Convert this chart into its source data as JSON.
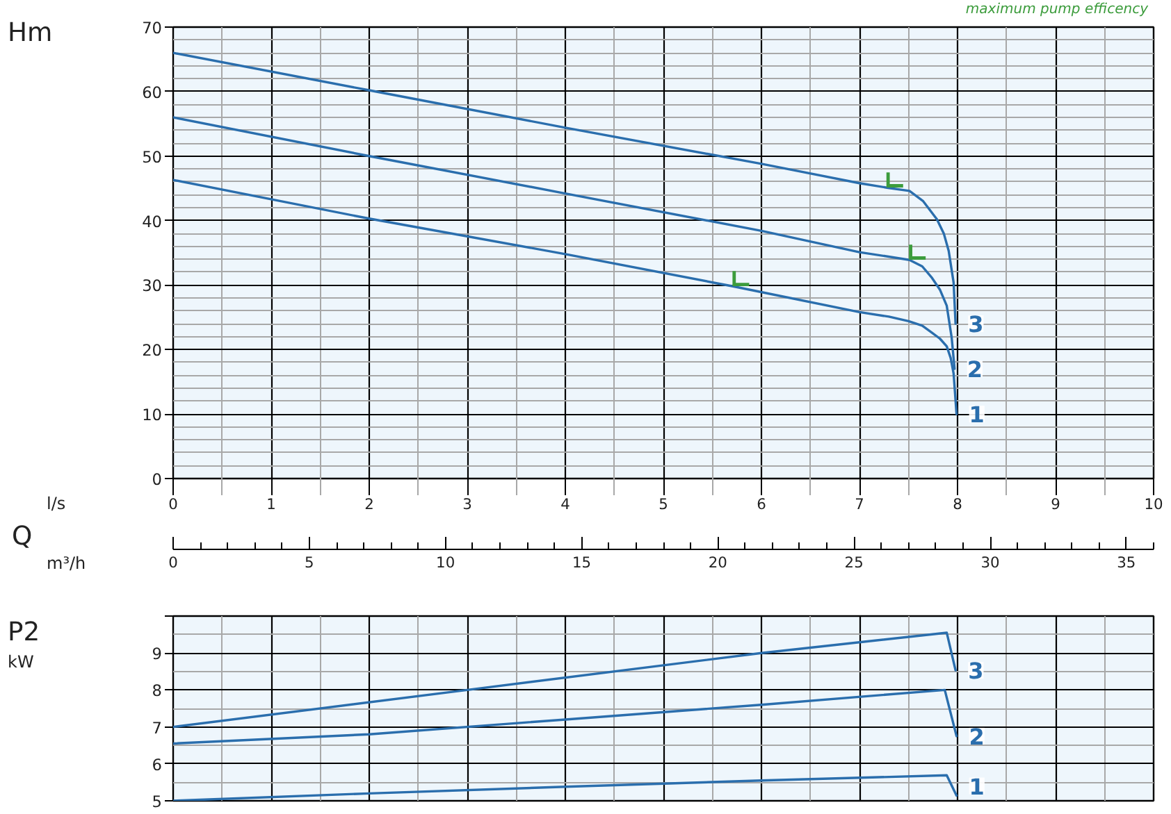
{
  "chart_data": [
    {
      "type": "line",
      "ylabel": "Hm",
      "xlabel": "l/s",
      "x2label": "m³/h",
      "annotations": [
        "Q"
      ],
      "xlim": [
        0,
        10
      ],
      "xticks": [
        0,
        1,
        2,
        3,
        4,
        5,
        6,
        7,
        8,
        9,
        10
      ],
      "x2lim": [
        0,
        36
      ],
      "x2ticks": [
        0,
        5,
        10,
        15,
        20,
        25,
        30,
        35
      ],
      "ylim": [
        0,
        70
      ],
      "yticks": [
        0,
        10,
        20,
        30,
        40,
        50,
        60,
        70
      ],
      "grid": true,
      "legend": "top right",
      "series": [
        {
          "name": "1",
          "color": "#2a6ead",
          "x": [
            0,
            2,
            4,
            5.71,
            7,
            7.3,
            7.5,
            7.64,
            7.74,
            7.82,
            7.89,
            7.93,
            7.96,
            7.99
          ],
          "values": [
            46.3,
            40.3,
            34.8,
            29.8,
            25.8,
            25.1,
            24.4,
            23.7,
            22.6,
            21.7,
            20.5,
            18.7,
            16.3,
            10
          ]
        },
        {
          "name": "2",
          "color": "#2a6ead",
          "x": [
            0,
            2,
            4,
            6,
            7,
            7.51,
            7.64,
            7.74,
            7.82,
            7.89,
            7.94,
            7.97
          ],
          "values": [
            56,
            50,
            44.2,
            38.4,
            35.1,
            33.9,
            32.9,
            31.1,
            29.3,
            26.8,
            21.9,
            17
          ]
        },
        {
          "name": "3",
          "color": "#2a6ead",
          "x": [
            0,
            2,
            4,
            6,
            7,
            7.28,
            7.51,
            7.65,
            7.79,
            7.86,
            7.91,
            7.96,
            7.98
          ],
          "values": [
            66,
            60.2,
            54.4,
            48.8,
            45.8,
            45.1,
            44.6,
            43,
            40.2,
            38,
            35.3,
            30.4,
            24
          ]
        },
        {
          "name": "maximum pump efficency",
          "type": "scatter",
          "color": "#3c9c3c",
          "x": [
            5.79,
            7.59,
            7.36
          ],
          "values": [
            31.0,
            35.1,
            46.3
          ]
        }
      ]
    },
    {
      "type": "line",
      "ylabel": "P2",
      "annotations": [
        "kW"
      ],
      "xlim": [
        0,
        10
      ],
      "xticks": [
        0,
        1,
        2,
        3,
        4,
        5,
        6,
        7,
        8,
        9,
        10
      ],
      "tick_labels": "y",
      "ylim": [
        5,
        10
      ],
      "yticks": [
        5,
        6,
        7,
        8,
        9,
        {
          "value": 10,
          "label": null
        }
      ],
      "grid": true,
      "series": [
        {
          "name": "1",
          "color": "#2a6ead",
          "x": [
            0,
            2,
            4,
            6,
            7.89,
            7.99
          ],
          "values": [
            5.0,
            5.2,
            5.38,
            5.55,
            5.69,
            5.14
          ]
        },
        {
          "name": "2",
          "color": "#2a6ead",
          "x": [
            0,
            2,
            4,
            6,
            7.87,
            7.99
          ],
          "values": [
            6.55,
            6.8,
            7.2,
            7.6,
            8.0,
            6.75
          ]
        },
        {
          "name": "3",
          "color": "#2a6ead",
          "x": [
            0,
            3,
            6,
            7.89,
            7.98
          ],
          "values": [
            7.0,
            8.0,
            9.0,
            9.55,
            8.53
          ]
        }
      ]
    }
  ]
}
